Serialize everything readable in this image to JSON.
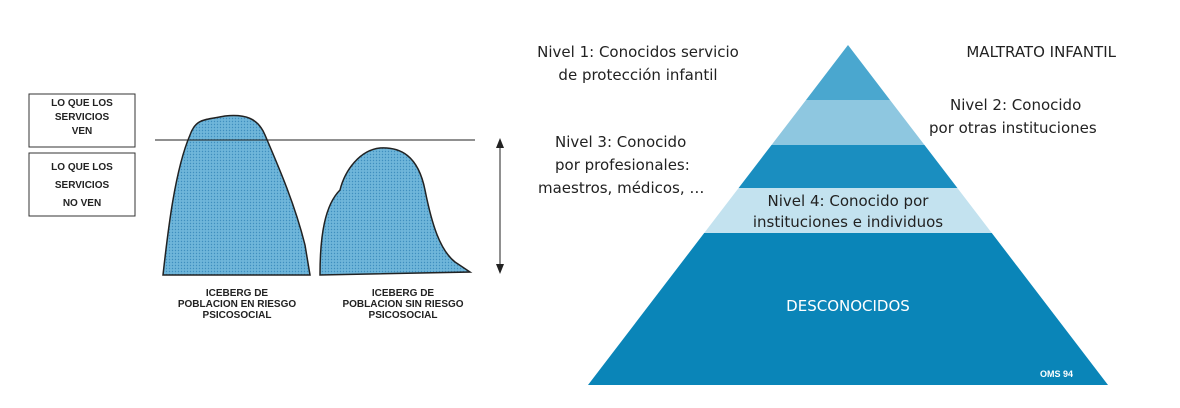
{
  "iceberg": {
    "boxes": [
      {
        "lines": [
          "LO QUE LOS",
          "SERVICIOS",
          "VEN"
        ]
      },
      {
        "lines": [
          "LO QUE LOS",
          "SERVICIOS",
          "NO VEN"
        ]
      }
    ],
    "labels": [
      {
        "lines": [
          "ICEBERG DE",
          "POBLACION EN RIESGO",
          "PSICOSOCIAL"
        ]
      },
      {
        "lines": [
          "ICEBERG DE",
          "POBLACION SIN RIESGO",
          "PSICOSOCIAL"
        ]
      }
    ]
  },
  "pyramid": {
    "title": "MALTRATO INFANTIL",
    "levels": [
      {
        "lines": [
          "Nivel 1: Conocidos servicio",
          "de protección infantil"
        ]
      },
      {
        "lines": [
          "Nivel 2: Conocido",
          "por otras instituciones"
        ]
      },
      {
        "lines": [
          "Nivel 3: Conocido",
          "por profesionales:",
          "maestros, médicos, …"
        ]
      },
      {
        "lines": [
          "Nivel 4: Conocido por",
          "instituciones e individuos"
        ]
      }
    ],
    "bottom": "DESCONOCIDOS",
    "source": "OMS 94"
  }
}
